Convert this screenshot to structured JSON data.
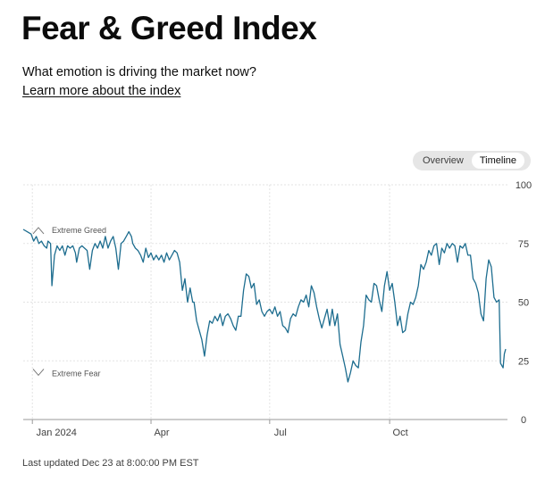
{
  "header": {
    "title": "Fear & Greed Index",
    "subtitle": "What emotion is driving the market now?",
    "learn_more": "Learn more about the index"
  },
  "toggle": {
    "overview_label": "Overview",
    "timeline_label": "Timeline",
    "selected": "Timeline"
  },
  "footer": {
    "last_updated": "Last updated Dec 23 at 8:00:00 PM EST"
  },
  "colors": {
    "line": "#1d6d8f",
    "grid": "#e3e3e3",
    "axis": "#9a9a9a",
    "text": "#404040"
  },
  "chart_data": {
    "type": "line",
    "title": "Fear & Greed Index",
    "xlabel": "",
    "ylabel": "",
    "ylim": [
      0,
      100
    ],
    "y_ticks": [
      0,
      25,
      50,
      75,
      100
    ],
    "x_ticks": [
      {
        "label": "Jan 2024",
        "day": 0
      },
      {
        "label": "Apr",
        "day": 91
      },
      {
        "label": "Jul",
        "day": 182
      },
      {
        "label": "Oct",
        "day": 274
      }
    ],
    "x_range_days": [
      -7,
      363
    ],
    "grid": true,
    "zones": [
      {
        "label": "Extreme Greed",
        "icon": "chevron-up"
      },
      {
        "label": "Extreme Fear",
        "icon": "chevron-down"
      }
    ],
    "series": [
      {
        "name": "Fear & Greed Index",
        "points": [
          [
            -7,
            81
          ],
          [
            -4,
            80
          ],
          [
            -1,
            79
          ],
          [
            1,
            76
          ],
          [
            3,
            78
          ],
          [
            5,
            75
          ],
          [
            7,
            76
          ],
          [
            9,
            74
          ],
          [
            11,
            73
          ],
          [
            12,
            76
          ],
          [
            14,
            75
          ],
          [
            15,
            57
          ],
          [
            17,
            70
          ],
          [
            19,
            74
          ],
          [
            21,
            72
          ],
          [
            23,
            74
          ],
          [
            25,
            70
          ],
          [
            27,
            74
          ],
          [
            29,
            73
          ],
          [
            31,
            74
          ],
          [
            33,
            71
          ],
          [
            34,
            67
          ],
          [
            36,
            73
          ],
          [
            38,
            74
          ],
          [
            40,
            73
          ],
          [
            42,
            72
          ],
          [
            44,
            64
          ],
          [
            46,
            72
          ],
          [
            48,
            75
          ],
          [
            50,
            73
          ],
          [
            52,
            76
          ],
          [
            54,
            73
          ],
          [
            56,
            78
          ],
          [
            58,
            73
          ],
          [
            60,
            76
          ],
          [
            62,
            78
          ],
          [
            64,
            73
          ],
          [
            66,
            64
          ],
          [
            68,
            75
          ],
          [
            70,
            76
          ],
          [
            72,
            78
          ],
          [
            74,
            80
          ],
          [
            76,
            78
          ],
          [
            77,
            75
          ],
          [
            79,
            73
          ],
          [
            81,
            72
          ],
          [
            83,
            70
          ],
          [
            85,
            67
          ],
          [
            87,
            73
          ],
          [
            89,
            69
          ],
          [
            91,
            71
          ],
          [
            93,
            68
          ],
          [
            95,
            70
          ],
          [
            97,
            68
          ],
          [
            99,
            70
          ],
          [
            101,
            67
          ],
          [
            103,
            71
          ],
          [
            105,
            68
          ],
          [
            107,
            70
          ],
          [
            109,
            72
          ],
          [
            111,
            71
          ],
          [
            113,
            67
          ],
          [
            115,
            55
          ],
          [
            117,
            60
          ],
          [
            119,
            50
          ],
          [
            121,
            56
          ],
          [
            123,
            50
          ],
          [
            124,
            50
          ],
          [
            126,
            42
          ],
          [
            128,
            38
          ],
          [
            130,
            34
          ],
          [
            132,
            27
          ],
          [
            134,
            36
          ],
          [
            136,
            42
          ],
          [
            138,
            41
          ],
          [
            140,
            44
          ],
          [
            142,
            42
          ],
          [
            144,
            45
          ],
          [
            146,
            40
          ],
          [
            148,
            44
          ],
          [
            150,
            45
          ],
          [
            152,
            43
          ],
          [
            154,
            40
          ],
          [
            156,
            38
          ],
          [
            158,
            44
          ],
          [
            160,
            44
          ],
          [
            162,
            55
          ],
          [
            164,
            62
          ],
          [
            166,
            61
          ],
          [
            168,
            56
          ],
          [
            170,
            58
          ],
          [
            172,
            49
          ],
          [
            174,
            51
          ],
          [
            176,
            46
          ],
          [
            178,
            44
          ],
          [
            180,
            46
          ],
          [
            182,
            47
          ],
          [
            184,
            45
          ],
          [
            186,
            48
          ],
          [
            188,
            44
          ],
          [
            190,
            46
          ],
          [
            192,
            40
          ],
          [
            194,
            39
          ],
          [
            196,
            37
          ],
          [
            198,
            43
          ],
          [
            200,
            45
          ],
          [
            202,
            44
          ],
          [
            204,
            48
          ],
          [
            206,
            51
          ],
          [
            208,
            50
          ],
          [
            210,
            53
          ],
          [
            212,
            48
          ],
          [
            214,
            57
          ],
          [
            216,
            54
          ],
          [
            218,
            48
          ],
          [
            220,
            43
          ],
          [
            222,
            39
          ],
          [
            224,
            43
          ],
          [
            226,
            47
          ],
          [
            228,
            40
          ],
          [
            230,
            47
          ],
          [
            232,
            40
          ],
          [
            234,
            45
          ],
          [
            236,
            32
          ],
          [
            238,
            27
          ],
          [
            240,
            22
          ],
          [
            242,
            16
          ],
          [
            244,
            20
          ],
          [
            246,
            25
          ],
          [
            248,
            23
          ],
          [
            250,
            22
          ],
          [
            252,
            33
          ],
          [
            254,
            40
          ],
          [
            256,
            53
          ],
          [
            258,
            51
          ],
          [
            260,
            50
          ],
          [
            262,
            58
          ],
          [
            264,
            57
          ],
          [
            266,
            51
          ],
          [
            268,
            46
          ],
          [
            270,
            57
          ],
          [
            272,
            63
          ],
          [
            274,
            55
          ],
          [
            276,
            58
          ],
          [
            278,
            50
          ],
          [
            280,
            40
          ],
          [
            282,
            44
          ],
          [
            284,
            37
          ],
          [
            286,
            38
          ],
          [
            288,
            45
          ],
          [
            290,
            50
          ],
          [
            292,
            49
          ],
          [
            294,
            52
          ],
          [
            296,
            57
          ],
          [
            298,
            66
          ],
          [
            300,
            64
          ],
          [
            302,
            67
          ],
          [
            304,
            72
          ],
          [
            306,
            70
          ],
          [
            308,
            74
          ],
          [
            310,
            75
          ],
          [
            312,
            66
          ],
          [
            314,
            73
          ],
          [
            316,
            71
          ],
          [
            318,
            75
          ],
          [
            320,
            73
          ],
          [
            322,
            75
          ],
          [
            324,
            74
          ],
          [
            326,
            67
          ],
          [
            328,
            74
          ],
          [
            330,
            73
          ],
          [
            332,
            75
          ],
          [
            334,
            70
          ],
          [
            336,
            70
          ],
          [
            338,
            60
          ],
          [
            340,
            58
          ],
          [
            342,
            54
          ],
          [
            344,
            45
          ],
          [
            346,
            42
          ],
          [
            348,
            60
          ],
          [
            350,
            68
          ],
          [
            352,
            65
          ],
          [
            354,
            52
          ],
          [
            356,
            50
          ],
          [
            358,
            51
          ],
          [
            359,
            24
          ],
          [
            361,
            22
          ],
          [
            362,
            28
          ],
          [
            363,
            30
          ]
        ]
      }
    ]
  }
}
